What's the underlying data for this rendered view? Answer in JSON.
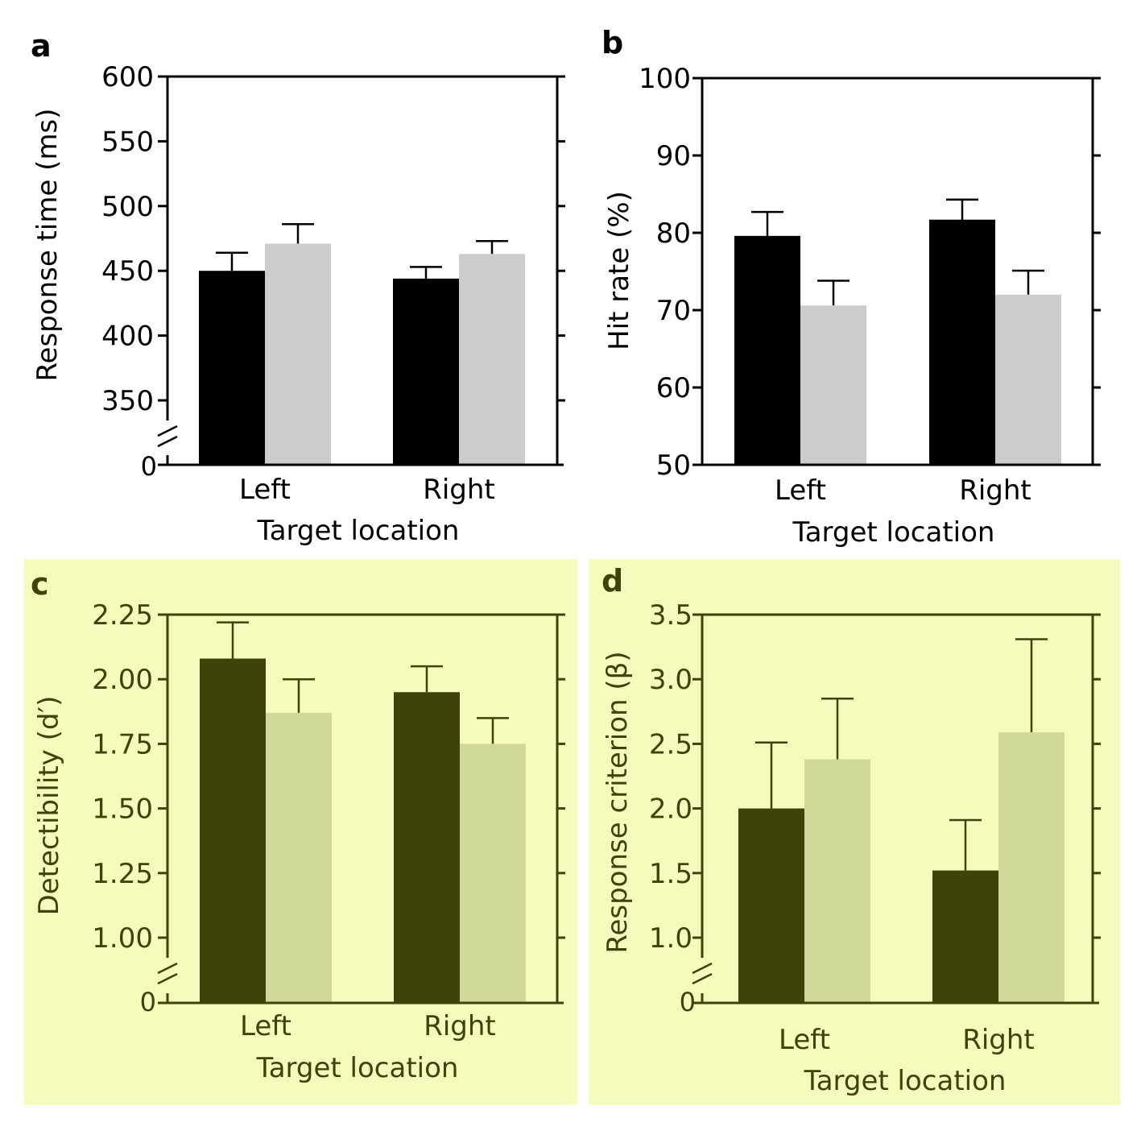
{
  "colors": {
    "panel_bg_top": "#ffffff",
    "panel_bg_bottom": "#f5fbbd",
    "ink_top": "#000000",
    "ink_bottom": "#3d4309",
    "bar_dark_top": "#000000",
    "bar_light_top": "#cccccc",
    "bar_dark_bottom": "#3d4309",
    "bar_light_bottom": "#d0d99a"
  },
  "chart_data": [
    {
      "panel": "a",
      "type": "bar",
      "xlabel": "Target location",
      "ylabel": "Response time (ms)",
      "categories": [
        "Left",
        "Right"
      ],
      "axis_break": true,
      "break_label": "0",
      "ylim": [
        325,
        600
      ],
      "yticks": [
        350,
        400,
        450,
        500,
        550,
        600
      ],
      "tick_labels": [
        "350",
        "400",
        "450",
        "500",
        "550",
        "600"
      ],
      "series": [
        {
          "values": [
            450,
            444
          ],
          "errors": [
            14,
            9
          ]
        },
        {
          "values": [
            471,
            463
          ],
          "errors": [
            15,
            10
          ]
        }
      ]
    },
    {
      "panel": "b",
      "type": "bar",
      "xlabel": "Target location",
      "ylabel": "Hit rate (%)",
      "categories": [
        "Left",
        "Right"
      ],
      "axis_break": false,
      "ylim": [
        50,
        100
      ],
      "yticks": [
        50,
        60,
        70,
        80,
        90,
        100
      ],
      "tick_labels": [
        "50",
        "60",
        "70",
        "80",
        "90",
        "100"
      ],
      "series": [
        {
          "values": [
            79.6,
            81.7
          ],
          "errors": [
            3.1,
            2.6
          ]
        },
        {
          "values": [
            70.6,
            72.0
          ],
          "errors": [
            3.2,
            3.1
          ]
        }
      ]
    },
    {
      "panel": "c",
      "type": "bar",
      "xlabel": "Target location",
      "ylabel": "Detectibility (d′)",
      "categories": [
        "Left",
        "Right"
      ],
      "axis_break": true,
      "break_label": "0",
      "ylim": [
        0.75,
        2.25
      ],
      "yticks": [
        1.0,
        1.25,
        1.5,
        1.75,
        2.0,
        2.25
      ],
      "tick_labels": [
        "1.00",
        "1.25",
        "1.50",
        "1.75",
        "2.00",
        "2.25"
      ],
      "series": [
        {
          "values": [
            2.08,
            1.95
          ],
          "errors": [
            0.14,
            0.1
          ]
        },
        {
          "values": [
            1.87,
            1.75
          ],
          "errors": [
            0.13,
            0.1
          ]
        }
      ]
    },
    {
      "panel": "d",
      "type": "bar",
      "xlabel": "Target location",
      "ylabel": "Response criterion (β)",
      "categories": [
        "Left",
        "Right"
      ],
      "axis_break": true,
      "break_label": "0",
      "ylim": [
        0.5,
        3.5
      ],
      "yticks": [
        1.0,
        1.5,
        2.0,
        2.5,
        3.0,
        3.5
      ],
      "tick_labels": [
        "1.0",
        "1.5",
        "2.0",
        "2.5",
        "3.0",
        "3.5"
      ],
      "series": [
        {
          "values": [
            2.0,
            1.52
          ],
          "errors": [
            0.51,
            0.39
          ]
        },
        {
          "values": [
            2.38,
            2.59
          ],
          "errors": [
            0.47,
            0.72
          ]
        }
      ]
    }
  ]
}
